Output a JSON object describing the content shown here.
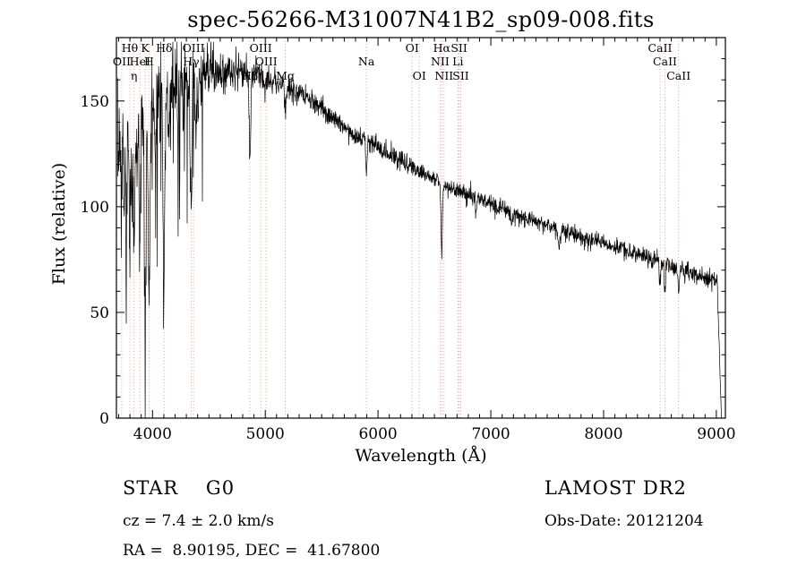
{
  "title": "spec-56266-M31007N41B2_sp09-008.fits",
  "annotations": {
    "class_label": "STAR    G0",
    "survey": "LAMOST DR2",
    "cz": "cz = 7.4 ± 2.0 km/s",
    "obs_date": "Obs-Date: 20121204",
    "radec": "RA =  8.90195, DEC =  41.67800"
  },
  "chart_data": {
    "type": "line",
    "title": "spec-56266-M31007N41B2_sp09-008.fits",
    "xlabel": "Wavelength (Å)",
    "ylabel": "Flux (relative)",
    "xlim": [
      3680,
      9080
    ],
    "ylim": [
      0,
      180
    ],
    "xticks": [
      4000,
      5000,
      6000,
      7000,
      8000,
      9000
    ],
    "yticks": [
      0,
      50,
      100,
      150
    ],
    "x_minor_step": 100,
    "y_minor_step": 10,
    "grid": false,
    "legend": "none",
    "line_color": "#000000",
    "line_marker_color": "#e9a0a0",
    "spectral_lines": [
      {
        "label": "Hθ",
        "wavelength": 3799,
        "row": 0
      },
      {
        "label": "K",
        "wavelength": 3935,
        "row": 0
      },
      {
        "label": "Hδ",
        "wavelength": 4103,
        "row": 0
      },
      {
        "label": "OIII",
        "wavelength": 4364,
        "row": 0
      },
      {
        "label": "OIII",
        "wavelength": 4960,
        "row": 0
      },
      {
        "label": "OI",
        "wavelength": 6302,
        "row": 0
      },
      {
        "label": "Hα",
        "wavelength": 6565,
        "row": 0
      },
      {
        "label": "SII",
        "wavelength": 6718,
        "row": 0
      },
      {
        "label": "CaII",
        "wavelength": 8500,
        "row": 0
      },
      {
        "label": "OII",
        "wavelength": 3727,
        "row": 1
      },
      {
        "label": "HeI",
        "wavelength": 3889,
        "row": 1
      },
      {
        "label": "H",
        "wavelength": 3970,
        "row": 1
      },
      {
        "label": "Hγ",
        "wavelength": 4342,
        "row": 1
      },
      {
        "label": "OIII",
        "wavelength": 5008,
        "row": 1
      },
      {
        "label": "Na",
        "wavelength": 5896,
        "row": 1
      },
      {
        "label": "NII",
        "wavelength": 6550,
        "row": 1
      },
      {
        "label": "Li",
        "wavelength": 6708,
        "row": 1
      },
      {
        "label": "CaII",
        "wavelength": 8544,
        "row": 1
      },
      {
        "label": "η",
        "wavelength": 3836,
        "row": 2
      },
      {
        "label": "Hβ",
        "wavelength": 4863,
        "row": 2
      },
      {
        "label": "Mg",
        "wavelength": 5177,
        "row": 2
      },
      {
        "label": "OI",
        "wavelength": 6366,
        "row": 2
      },
      {
        "label": "NII",
        "wavelength": 6585,
        "row": 2
      },
      {
        "label": "SII",
        "wavelength": 6733,
        "row": 2
      },
      {
        "label": "CaII",
        "wavelength": 8665,
        "row": 2
      }
    ],
    "continuum_points": [
      [
        3690,
        125
      ],
      [
        3800,
        138
      ],
      [
        3900,
        144
      ],
      [
        4000,
        148
      ],
      [
        4100,
        152
      ],
      [
        4200,
        155
      ],
      [
        4300,
        158
      ],
      [
        4400,
        160
      ],
      [
        4500,
        162
      ],
      [
        4600,
        163
      ],
      [
        4700,
        164
      ],
      [
        4800,
        164
      ],
      [
        4900,
        163
      ],
      [
        5000,
        161
      ],
      [
        5100,
        159
      ],
      [
        5200,
        157
      ],
      [
        5300,
        153
      ],
      [
        5400,
        150
      ],
      [
        5500,
        146
      ],
      [
        5600,
        142
      ],
      [
        5700,
        138
      ],
      [
        5800,
        134
      ],
      [
        5900,
        131
      ],
      [
        6000,
        128
      ],
      [
        6100,
        125
      ],
      [
        6200,
        122
      ],
      [
        6300,
        119
      ],
      [
        6400,
        116
      ],
      [
        6500,
        113
      ],
      [
        6600,
        110
      ],
      [
        6700,
        108
      ],
      [
        6800,
        106
      ],
      [
        7000,
        101
      ],
      [
        7200,
        97
      ],
      [
        7400,
        93
      ],
      [
        7600,
        90
      ],
      [
        7800,
        86
      ],
      [
        8000,
        83
      ],
      [
        8200,
        79
      ],
      [
        8400,
        76
      ],
      [
        8600,
        72
      ],
      [
        8800,
        68
      ],
      [
        9000,
        64
      ],
      [
        9080,
        62
      ]
    ],
    "absorption_features": [
      {
        "center": 3727,
        "depth": 25,
        "width": 5
      },
      {
        "center": 3750,
        "depth": 40,
        "width": 5
      },
      {
        "center": 3771,
        "depth": 45,
        "width": 5
      },
      {
        "center": 3799,
        "depth": 55,
        "width": 6
      },
      {
        "center": 3820,
        "depth": 30,
        "width": 5
      },
      {
        "center": 3836,
        "depth": 62,
        "width": 6
      },
      {
        "center": 3860,
        "depth": 25,
        "width": 5
      },
      {
        "center": 3889,
        "depth": 65,
        "width": 7
      },
      {
        "center": 3935,
        "depth": 95,
        "width": 8
      },
      {
        "center": 3970,
        "depth": 85,
        "width": 8
      },
      {
        "center": 4026,
        "depth": 25,
        "width": 5
      },
      {
        "center": 4103,
        "depth": 78,
        "width": 8
      },
      {
        "center": 4144,
        "depth": 20,
        "width": 5
      },
      {
        "center": 4226,
        "depth": 25,
        "width": 5
      },
      {
        "center": 4271,
        "depth": 20,
        "width": 5
      },
      {
        "center": 4342,
        "depth": 62,
        "width": 8
      },
      {
        "center": 4383,
        "depth": 25,
        "width": 6
      },
      {
        "center": 4404,
        "depth": 18,
        "width": 5
      },
      {
        "center": 4863,
        "depth": 42,
        "width": 7
      },
      {
        "center": 5177,
        "depth": 12,
        "width": 8
      },
      {
        "center": 5896,
        "depth": 16,
        "width": 6
      },
      {
        "center": 6565,
        "depth": 34,
        "width": 6
      },
      {
        "center": 6867,
        "depth": 6,
        "width": 8
      },
      {
        "center": 7186,
        "depth": 5,
        "width": 8
      },
      {
        "center": 7605,
        "depth": 8,
        "width": 10
      },
      {
        "center": 8500,
        "depth": 10,
        "width": 6
      },
      {
        "center": 8544,
        "depth": 13,
        "width": 6
      },
      {
        "center": 8665,
        "depth": 12,
        "width": 6
      }
    ],
    "noise_sigma_points": [
      [
        3690,
        13
      ],
      [
        4000,
        11
      ],
      [
        4300,
        9
      ],
      [
        4600,
        5
      ],
      [
        4900,
        3.5
      ],
      [
        5400,
        2.5
      ],
      [
        6000,
        2.2
      ],
      [
        7000,
        2.0
      ],
      [
        8000,
        2.0
      ],
      [
        8800,
        2.2
      ],
      [
        9045,
        2.0
      ]
    ],
    "red_cutoff": {
      "start": 9008,
      "end": 9045
    }
  }
}
